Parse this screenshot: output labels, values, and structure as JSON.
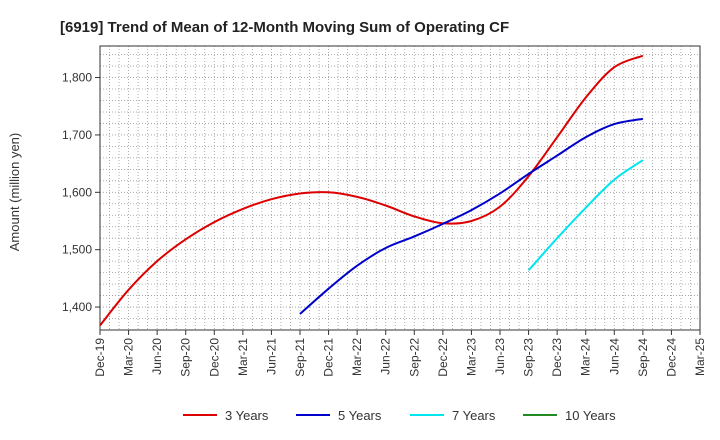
{
  "chart_data": {
    "type": "line",
    "title": "[6919]  Trend of Mean of 12-Month Moving Sum of Operating CF",
    "xlabel": "",
    "ylabel": "Amount (million yen)",
    "ylim": [
      1360,
      1855
    ],
    "yticks": [
      1400,
      1500,
      1600,
      1700,
      1800
    ],
    "ytick_labels": [
      "1,400",
      "1,500",
      "1,600",
      "1,700",
      "1,800"
    ],
    "categories": [
      "Dec-19",
      "Mar-20",
      "Jun-20",
      "Sep-20",
      "Dec-20",
      "Mar-21",
      "Jun-21",
      "Sep-21",
      "Dec-21",
      "Mar-22",
      "Jun-22",
      "Sep-22",
      "Dec-22",
      "Mar-23",
      "Jun-23",
      "Sep-23",
      "Dec-23",
      "Mar-24",
      "Jun-24",
      "Sep-24",
      "Dec-24",
      "Mar-25"
    ],
    "grid": true,
    "legend_position": "bottom",
    "series": [
      {
        "name": "3 Years",
        "color": "#dd0000",
        "values": [
          1368,
          1430,
          1480,
          1518,
          1548,
          1571,
          1588,
          1598,
          1600,
          1592,
          1577,
          1558,
          1546,
          1550,
          1575,
          1628,
          1696,
          1765,
          1818,
          1838,
          null,
          null
        ]
      },
      {
        "name": "5 Years",
        "color": "#0000cc",
        "values": [
          null,
          null,
          null,
          null,
          null,
          null,
          null,
          1388,
          1432,
          1472,
          1503,
          1523,
          1545,
          1569,
          1598,
          1632,
          1664,
          1696,
          1719,
          1728,
          null,
          null
        ]
      },
      {
        "name": "7 Years",
        "color": "#00e5ee",
        "values": [
          null,
          null,
          null,
          null,
          null,
          null,
          null,
          null,
          null,
          null,
          null,
          null,
          null,
          null,
          null,
          1464,
          1520,
          1573,
          1622,
          1656,
          null,
          null
        ]
      },
      {
        "name": "10 Years",
        "color": "#228b22",
        "values": [
          null,
          null,
          null,
          null,
          null,
          null,
          null,
          null,
          null,
          null,
          null,
          null,
          null,
          null,
          null,
          null,
          null,
          null,
          null,
          null,
          null,
          null
        ]
      }
    ]
  }
}
